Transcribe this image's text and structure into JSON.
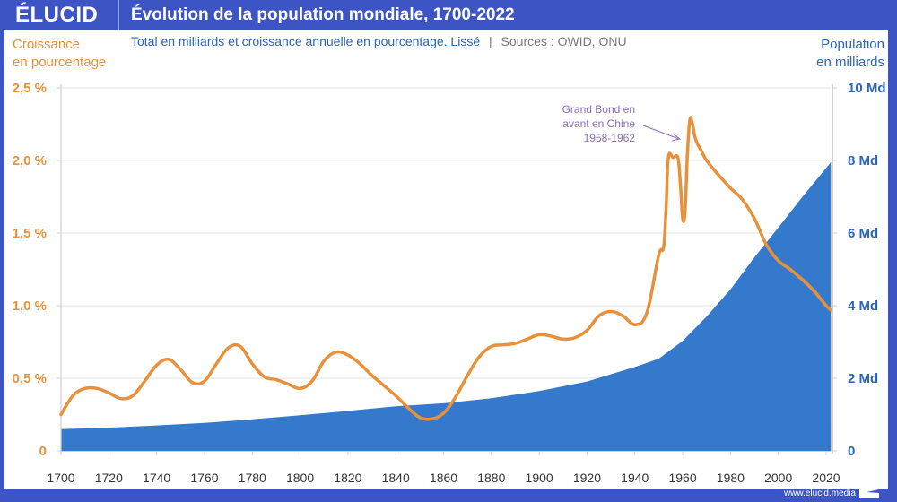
{
  "header": {
    "logo": "ÉLUCID",
    "title": "Évolution de la population mondiale, 1700-2022"
  },
  "subtitle": {
    "main": "Total en milliards et croissance annuelle en pourcentage. Lissé",
    "separator": "|",
    "sources": "Sources : OWID, ONU"
  },
  "axes": {
    "left_label_line1": "Croissance",
    "left_label_line2": "en pourcentage",
    "right_label_line1": "Population",
    "right_label_line2": "en milliards"
  },
  "footer": {
    "url": "www.elucid.media"
  },
  "colors": {
    "brand": "#3d55c4",
    "growth": "#e8903a",
    "population": "#3479cc",
    "annotation": "#8a6fb5"
  },
  "chart_data": {
    "type": "area+line",
    "title": "Évolution de la population mondiale, 1700-2022",
    "xlabel": "",
    "x_ticks": [
      1700,
      1720,
      1740,
      1760,
      1780,
      1800,
      1820,
      1840,
      1860,
      1880,
      1900,
      1920,
      1940,
      1960,
      1980,
      2000,
      2020
    ],
    "xlim": [
      1700,
      2022
    ],
    "y_left": {
      "label": "Croissance en pourcentage",
      "ylim": [
        0,
        2.5
      ],
      "ticks": [
        "0",
        "0,5 %",
        "1,0 %",
        "1,5 %",
        "2,0 %",
        "2,5 %"
      ]
    },
    "y_right": {
      "label": "Population en milliards",
      "ylim": [
        0,
        10
      ],
      "ticks": [
        "0",
        "2 Md",
        "4 Md",
        "6 Md",
        "8 Md",
        "10 Md"
      ]
    },
    "grid": true,
    "series": [
      {
        "name": "Population (milliards)",
        "type": "area",
        "axis": "right",
        "x": [
          1700,
          1720,
          1740,
          1760,
          1780,
          1800,
          1820,
          1840,
          1860,
          1880,
          1900,
          1920,
          1940,
          1950,
          1960,
          1970,
          1980,
          1990,
          2000,
          2010,
          2022
        ],
        "values": [
          0.6,
          0.64,
          0.7,
          0.77,
          0.87,
          0.98,
          1.1,
          1.23,
          1.31,
          1.45,
          1.65,
          1.91,
          2.31,
          2.54,
          3.03,
          3.7,
          4.45,
          5.33,
          6.15,
          6.99,
          7.95
        ]
      },
      {
        "name": "Croissance annuelle (%)",
        "type": "line",
        "axis": "left",
        "x": [
          1700,
          1705,
          1710,
          1715,
          1720,
          1725,
          1730,
          1735,
          1740,
          1745,
          1750,
          1755,
          1760,
          1765,
          1770,
          1775,
          1780,
          1785,
          1790,
          1795,
          1800,
          1805,
          1810,
          1815,
          1820,
          1825,
          1830,
          1835,
          1840,
          1845,
          1850,
          1855,
          1860,
          1865,
          1870,
          1875,
          1880,
          1885,
          1890,
          1895,
          1900,
          1905,
          1910,
          1915,
          1920,
          1925,
          1930,
          1935,
          1940,
          1945,
          1950,
          1952,
          1953,
          1954,
          1956,
          1958,
          1959,
          1960,
          1961,
          1962,
          1963,
          1964,
          1965,
          1966,
          1968,
          1970,
          1975,
          1980,
          1985,
          1990,
          1995,
          2000,
          2005,
          2010,
          2015,
          2020,
          2022
        ],
        "values": [
          0.25,
          0.38,
          0.43,
          0.43,
          0.4,
          0.36,
          0.38,
          0.48,
          0.59,
          0.63,
          0.56,
          0.47,
          0.48,
          0.6,
          0.71,
          0.72,
          0.6,
          0.51,
          0.49,
          0.46,
          0.43,
          0.48,
          0.62,
          0.68,
          0.66,
          0.6,
          0.52,
          0.45,
          0.38,
          0.3,
          0.23,
          0.22,
          0.26,
          0.37,
          0.52,
          0.65,
          0.72,
          0.73,
          0.74,
          0.77,
          0.8,
          0.79,
          0.77,
          0.78,
          0.83,
          0.93,
          0.96,
          0.93,
          0.87,
          0.95,
          1.35,
          1.4,
          1.65,
          2.02,
          2.02,
          2.02,
          1.85,
          1.6,
          1.65,
          2.05,
          2.28,
          2.26,
          2.17,
          2.12,
          2.06,
          2.0,
          1.9,
          1.81,
          1.73,
          1.6,
          1.42,
          1.31,
          1.25,
          1.18,
          1.1,
          1.0,
          0.97
        ]
      }
    ],
    "annotations": [
      {
        "text_lines": [
          "Grand Bond en",
          "avant en Chine",
          "1958-1962"
        ],
        "target_x": 1960,
        "target_y_percent": 2.2
      }
    ],
    "legend": "none"
  }
}
